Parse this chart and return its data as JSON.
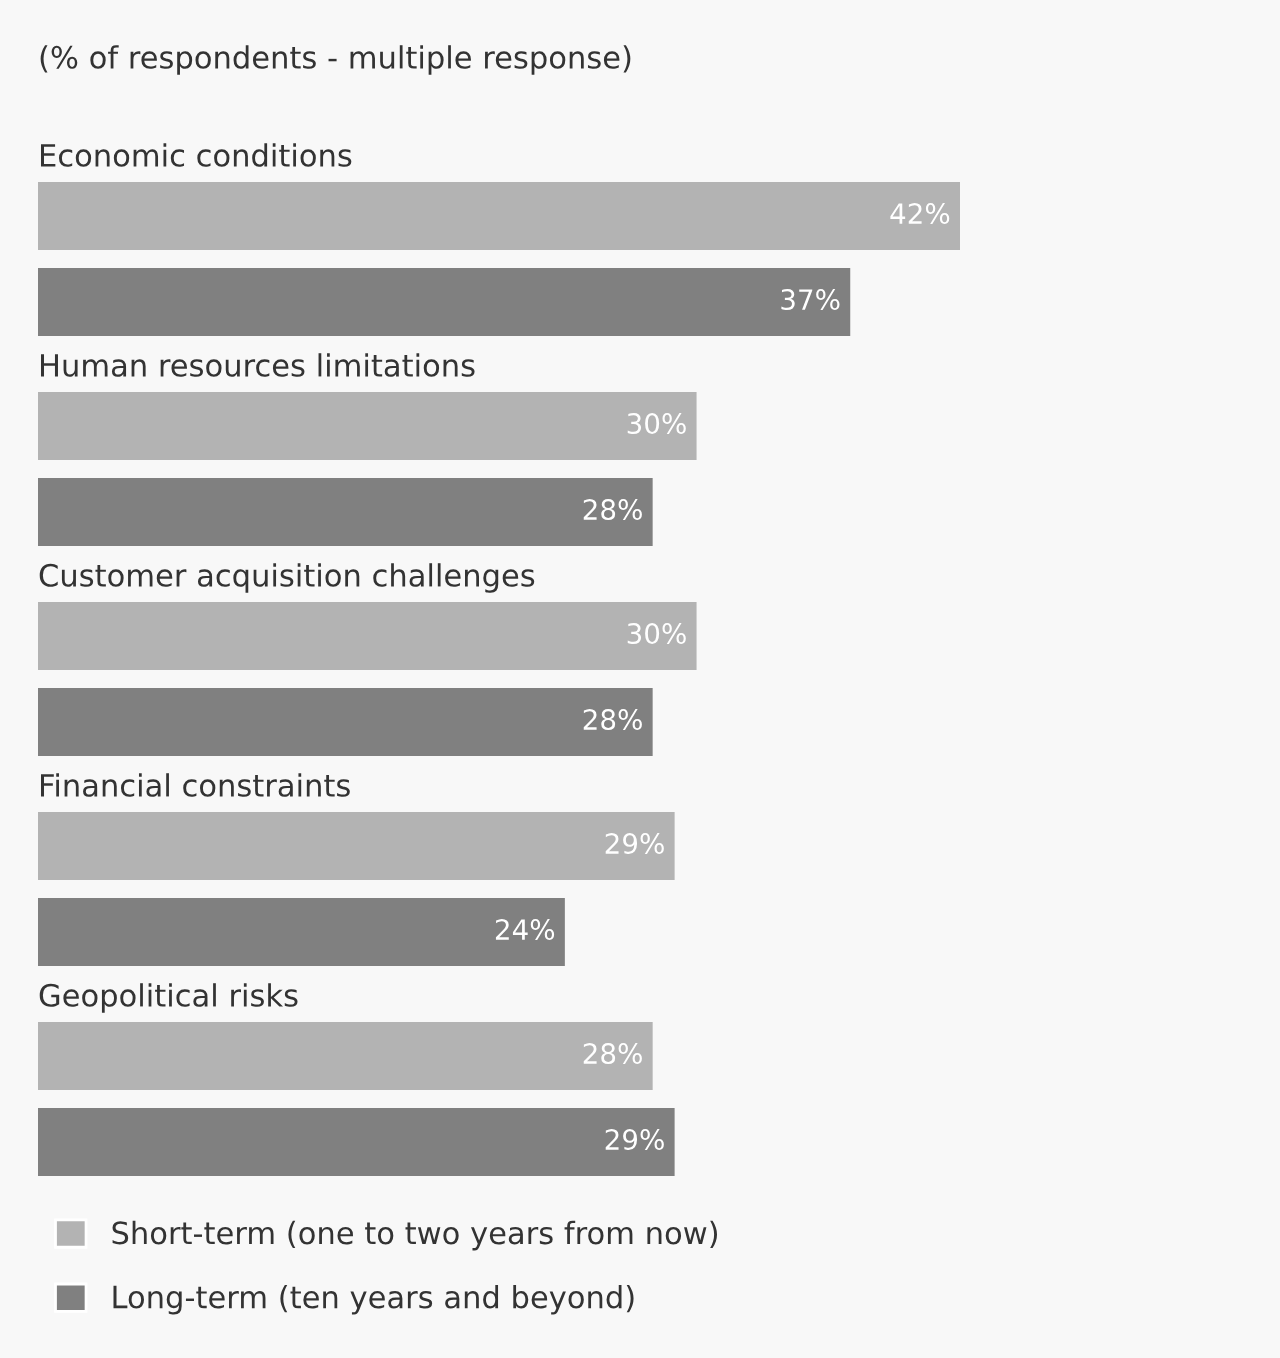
{
  "chart_data": {
    "type": "bar",
    "orientation": "horizontal",
    "title": "(% of respondents - multiple response)",
    "categories": [
      "Economic conditions",
      "Human resources limitations",
      "Customer acquisition challenges",
      "Financial constraints",
      "Geopolitical risks"
    ],
    "series": [
      {
        "name": "Short-term (one to two years from now)",
        "color": "#b3b3b3",
        "values": [
          42,
          30,
          30,
          29,
          28
        ],
        "value_labels": [
          "42%",
          "30%",
          "30%",
          "29%",
          "28%"
        ]
      },
      {
        "name": "Long-term (ten years and beyond)",
        "color": "#808080",
        "values": [
          37,
          28,
          28,
          24,
          29
        ],
        "value_labels": [
          "37%",
          "28%",
          "28%",
          "24%",
          "29%"
        ]
      }
    ],
    "legend": "bottom"
  }
}
